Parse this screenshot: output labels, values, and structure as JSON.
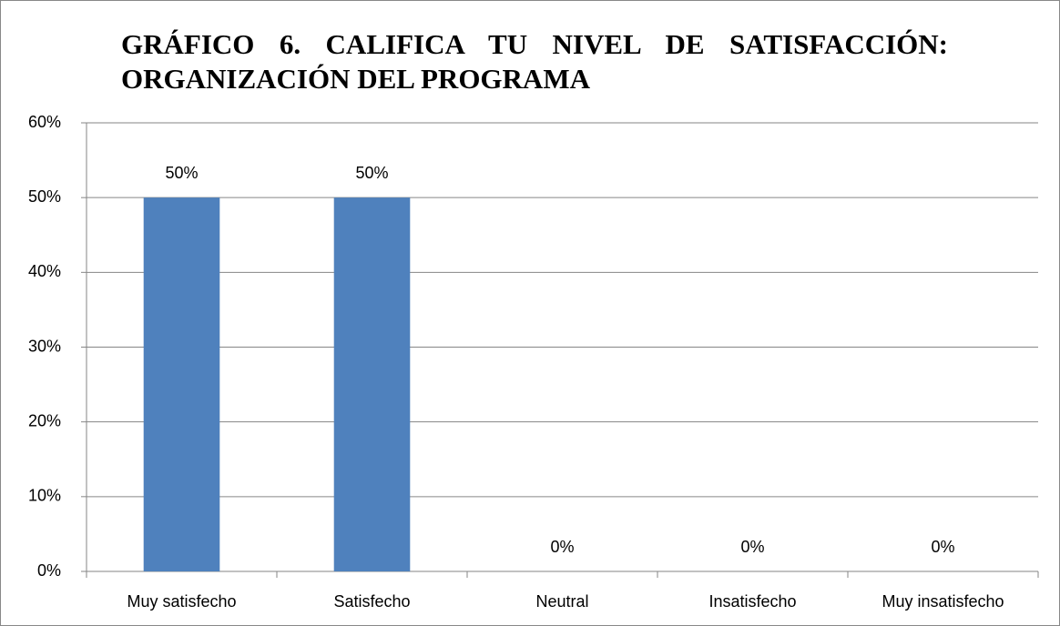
{
  "chart_data": {
    "type": "bar",
    "title": "GRÁFICO 6. CALIFICA TU NIVEL DE SATISFACCIÓN: ORGANIZACIÓN DEL PROGRAMA",
    "categories": [
      "Muy satisfecho",
      "Satisfecho",
      "Neutral",
      "Insatisfecho",
      "Muy insatisfecho"
    ],
    "values": [
      50,
      50,
      0,
      0,
      0
    ],
    "value_labels": [
      "50%",
      "50%",
      "0%",
      "0%",
      "0%"
    ],
    "color": "#4f81bd",
    "ylim": [
      0,
      60
    ],
    "yticks": [
      {
        "value": 0,
        "label": "0%"
      },
      {
        "value": 10,
        "label": "10%"
      },
      {
        "value": 20,
        "label": "20%"
      },
      {
        "value": 30,
        "label": "30%"
      },
      {
        "value": 40,
        "label": "40%"
      },
      {
        "value": 50,
        "label": "50%"
      },
      {
        "value": 60,
        "label": "60%"
      }
    ],
    "grid": true
  }
}
